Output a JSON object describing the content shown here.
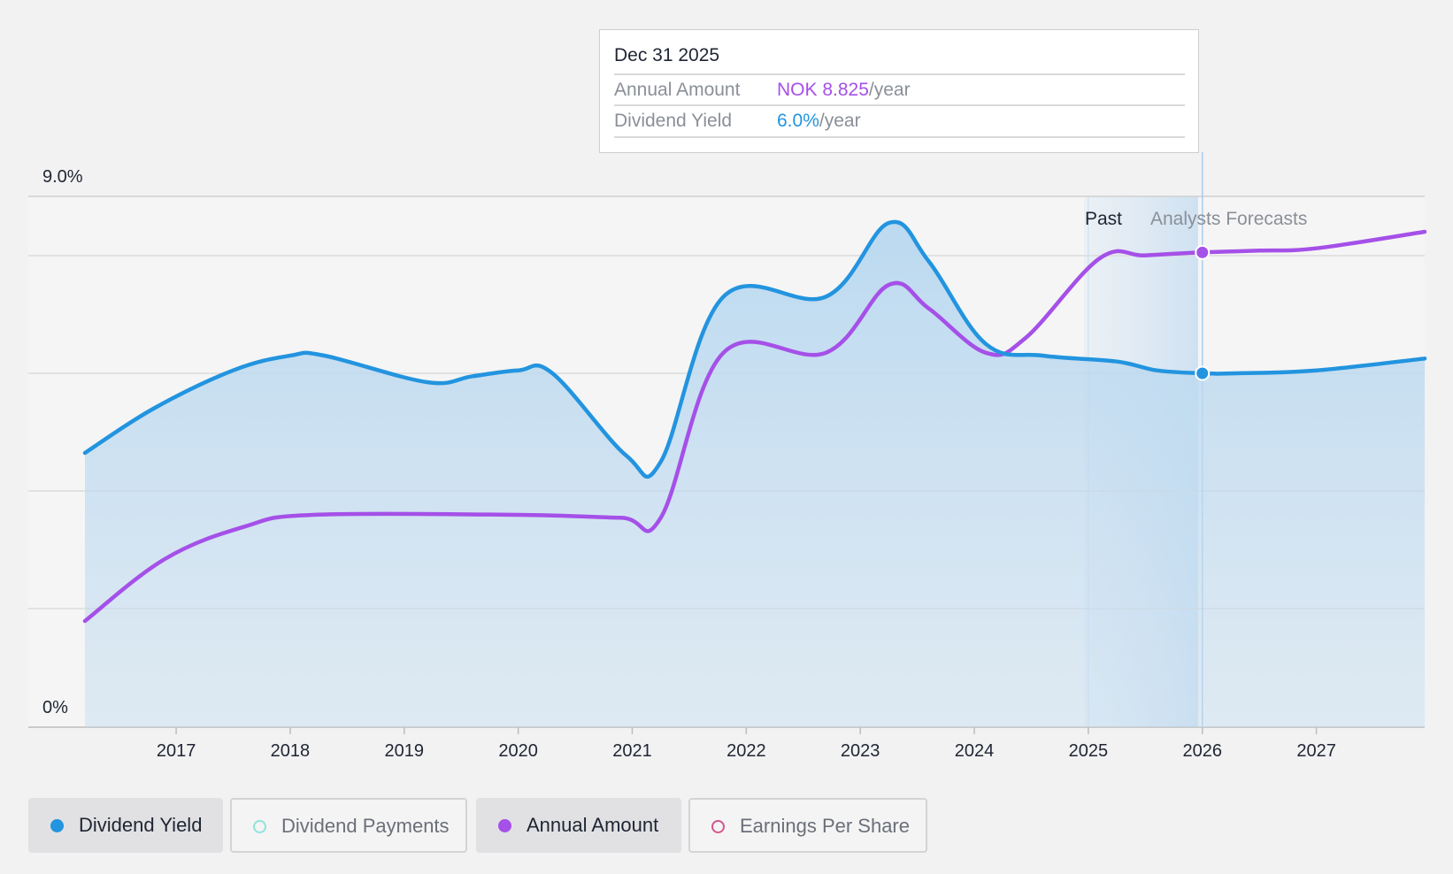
{
  "tooltip": {
    "date": "Dec 31 2025",
    "rows": [
      {
        "label": "Annual Amount",
        "value": "NOK 8.825",
        "unit": "/year"
      },
      {
        "label": "Dividend Yield",
        "value": "6.0%",
        "unit": "/year"
      }
    ]
  },
  "legend": {
    "items": [
      {
        "label": "Dividend Yield",
        "color": "#2394df",
        "active": true,
        "filled": true
      },
      {
        "label": "Dividend Payments",
        "color": "#8fe3dc",
        "active": false,
        "filled": false
      },
      {
        "label": "Annual Amount",
        "color": "#a550e8",
        "active": true,
        "filled": true
      },
      {
        "label": "Earnings Per Share",
        "color": "#d4568f",
        "active": false,
        "filled": false
      }
    ]
  },
  "chart_data": {
    "type": "line",
    "title": "",
    "y_axis": {
      "min": 0,
      "max": 9.0,
      "unit": "%",
      "tick_labels": [
        "0%",
        "9.0%"
      ]
    },
    "x_axis": {
      "min": 2016.2,
      "max": 2027.95,
      "tick_labels": [
        "2017",
        "2018",
        "2019",
        "2020",
        "2021",
        "2022",
        "2023",
        "2024",
        "2025",
        "2026",
        "2027"
      ]
    },
    "region_labels": {
      "past": "Past",
      "forecast": "Analysts Forecasts"
    },
    "divider_x": 2026.0,
    "grid": true,
    "colors": {
      "yield": "#2394df",
      "amount": "#a550e8",
      "area": "#c3dcf0"
    },
    "series": [
      {
        "name": "Dividend Yield",
        "key": "yield",
        "points": [
          [
            2016.2,
            4.65
          ],
          [
            2016.8,
            5.4
          ],
          [
            2017.5,
            6.05
          ],
          [
            2018.0,
            6.3
          ],
          [
            2018.3,
            6.3
          ],
          [
            2019.2,
            5.85
          ],
          [
            2019.6,
            5.95
          ],
          [
            2020.0,
            6.05
          ],
          [
            2020.3,
            6.0
          ],
          [
            2020.95,
            4.6
          ],
          [
            2021.25,
            4.5
          ],
          [
            2021.8,
            7.3
          ],
          [
            2022.7,
            7.3
          ],
          [
            2023.25,
            8.55
          ],
          [
            2023.6,
            7.9
          ],
          [
            2024.1,
            6.5
          ],
          [
            2024.6,
            6.3
          ],
          [
            2025.25,
            6.2
          ],
          [
            2025.6,
            6.05
          ],
          [
            2026.0,
            6.0
          ],
          [
            2026.3,
            6.0
          ],
          [
            2027.0,
            6.05
          ],
          [
            2027.95,
            6.25
          ]
        ]
      },
      {
        "name": "Annual Amount",
        "key": "amount",
        "points": [
          [
            2016.2,
            1.8
          ],
          [
            2016.9,
            2.85
          ],
          [
            2017.6,
            3.4
          ],
          [
            2018.2,
            3.6
          ],
          [
            2020.0,
            3.6
          ],
          [
            2020.9,
            3.55
          ],
          [
            2021.25,
            3.55
          ],
          [
            2021.8,
            6.35
          ],
          [
            2022.7,
            6.35
          ],
          [
            2023.25,
            7.5
          ],
          [
            2023.6,
            7.1
          ],
          [
            2024.1,
            6.35
          ],
          [
            2024.45,
            6.6
          ],
          [
            2025.1,
            7.95
          ],
          [
            2025.5,
            8.0
          ],
          [
            2026.0,
            8.05
          ],
          [
            2026.5,
            8.08
          ],
          [
            2027.0,
            8.12
          ],
          [
            2027.95,
            8.4
          ]
        ]
      }
    ],
    "markers": [
      {
        "series": "yield",
        "x": 2026.0,
        "y": 6.0
      },
      {
        "series": "amount",
        "x": 2026.0,
        "y": 8.05
      }
    ]
  }
}
